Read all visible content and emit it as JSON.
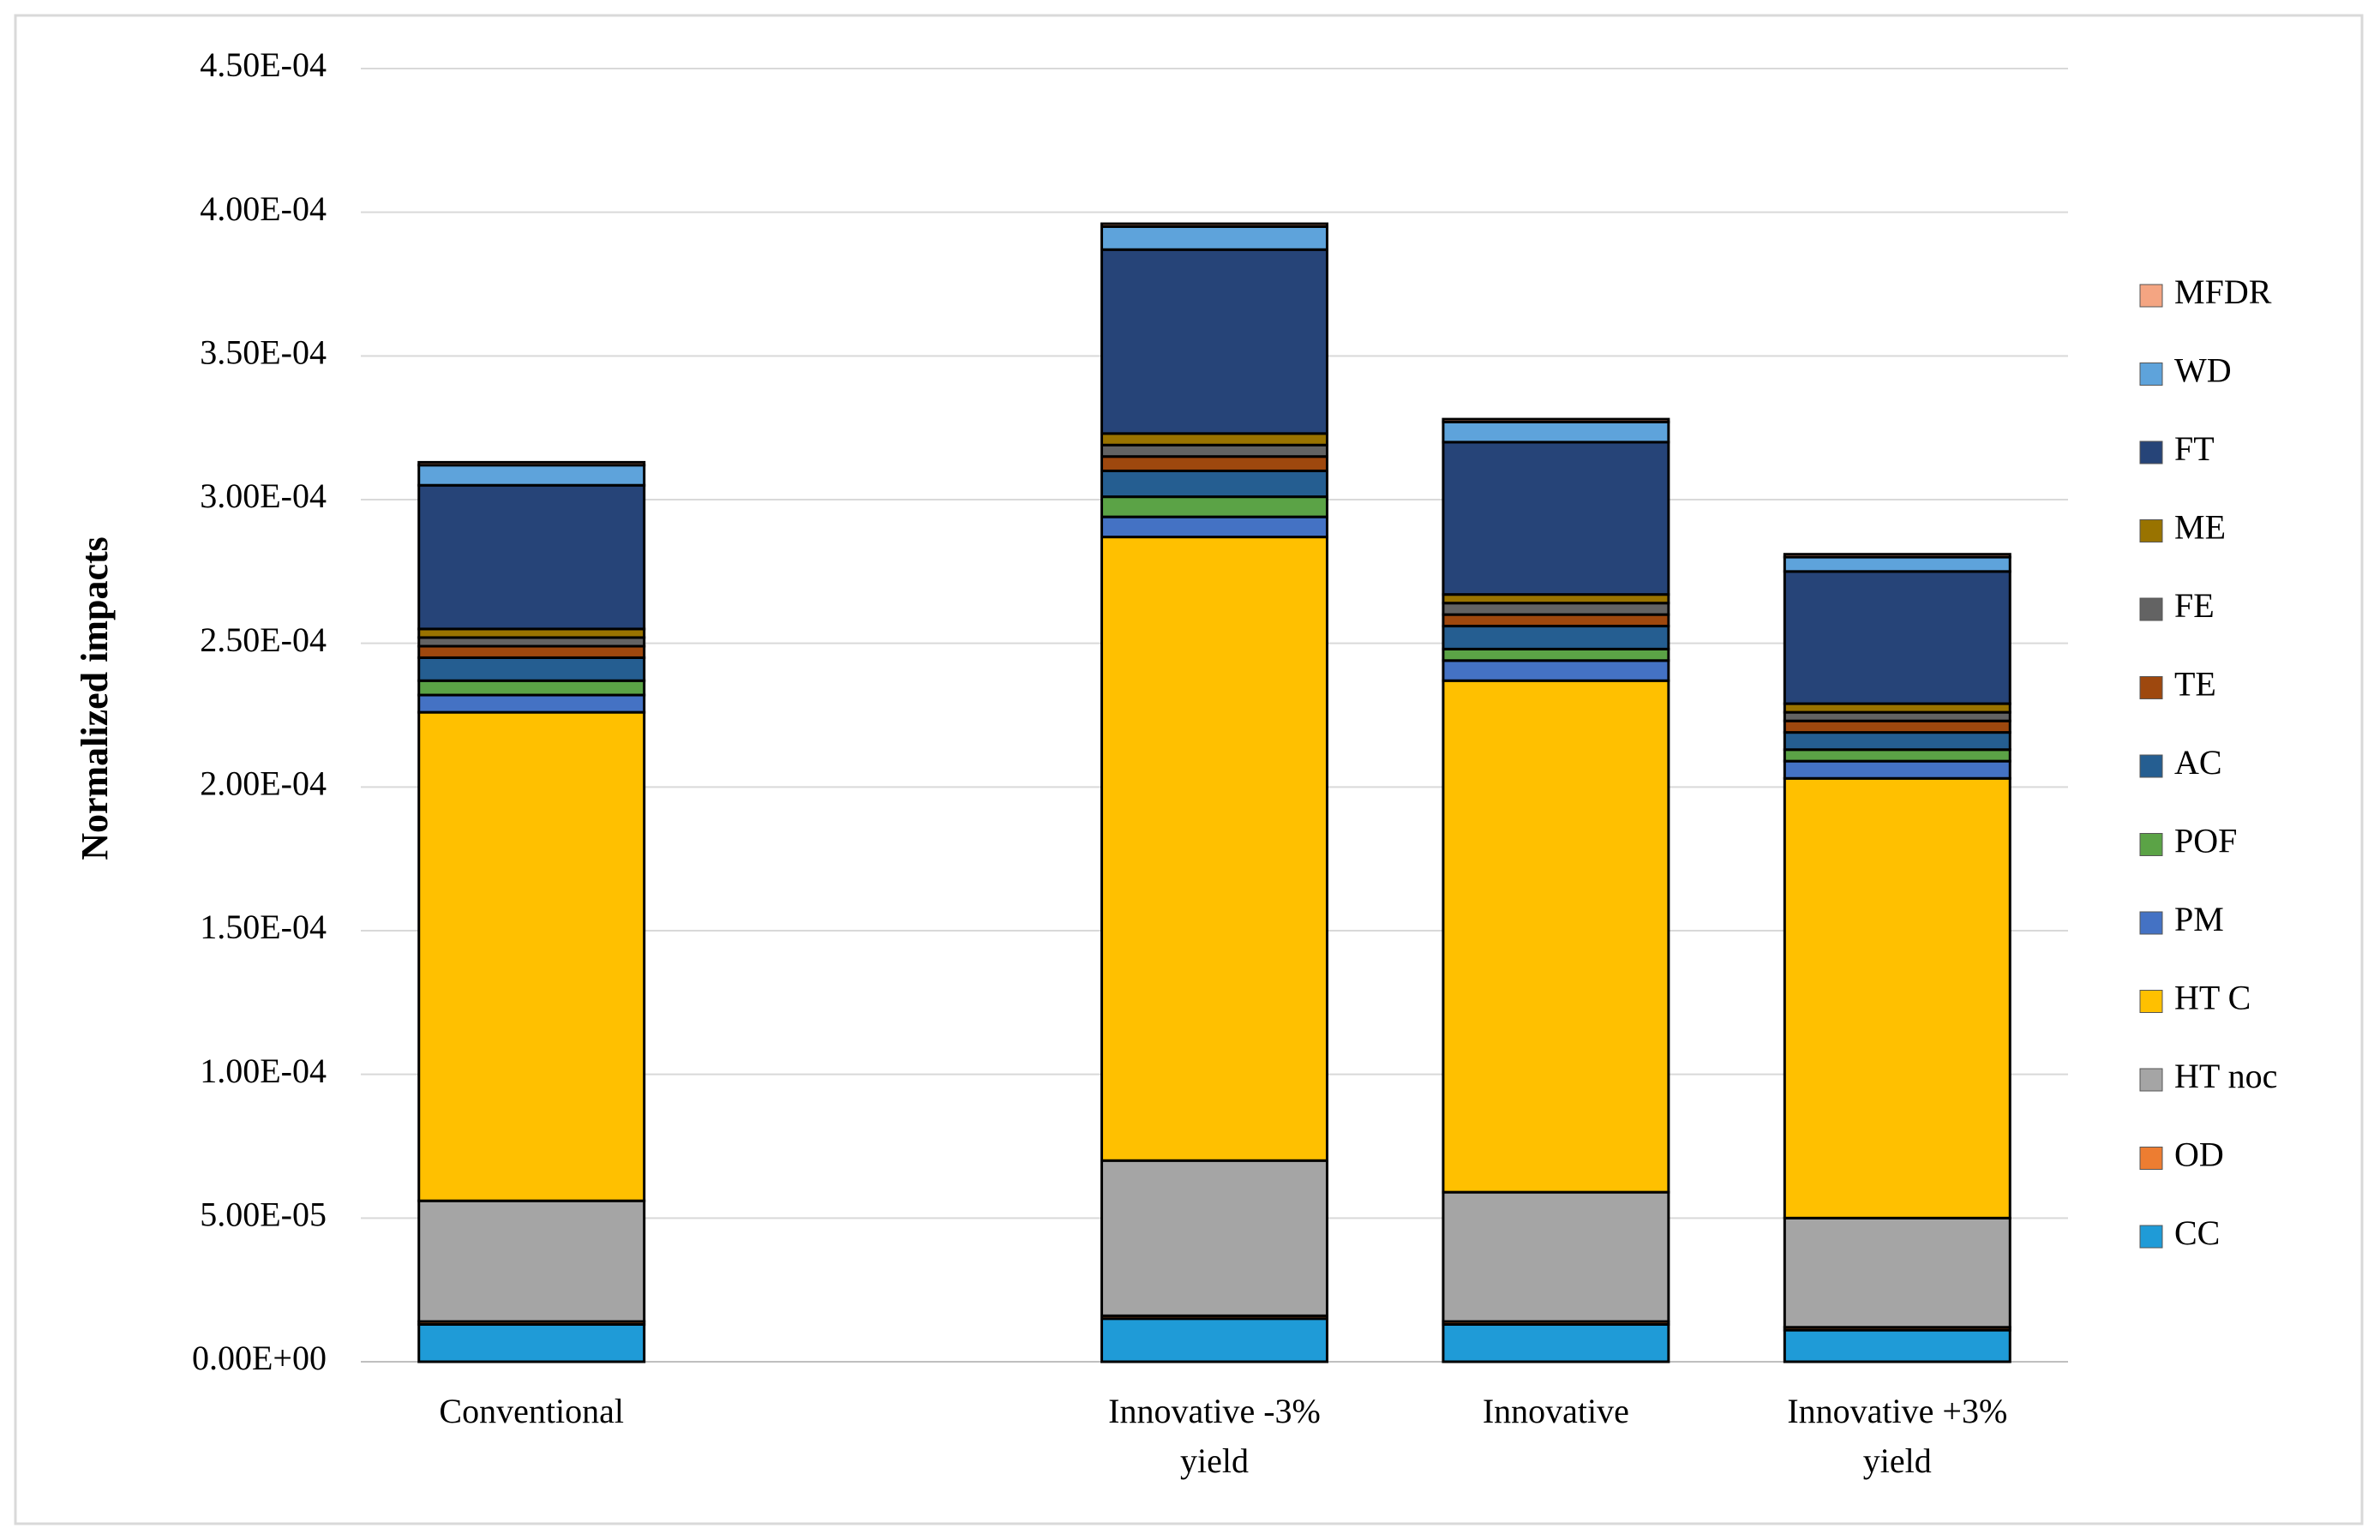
{
  "chart_data": {
    "type": "stacked_bar",
    "y_label": "Normalized impacts",
    "categories": [
      "Conventional",
      null,
      "Innovative -3% yield",
      "Innovative",
      "Innovative +3% yield"
    ],
    "series": [
      {
        "name": "CC",
        "color": "#1f9bd7",
        "values": [
          1.3e-05,
          null,
          1.5e-05,
          1.3e-05,
          1.1e-05
        ]
      },
      {
        "name": "OD",
        "color": "#ed7d31",
        "values": [
          1e-06,
          null,
          1e-06,
          1e-06,
          1e-06
        ]
      },
      {
        "name": "HT noc",
        "color": "#a5a5a5",
        "values": [
          4.2e-05,
          null,
          5.4e-05,
          4.5e-05,
          3.8e-05
        ]
      },
      {
        "name": "HT C",
        "color": "#ffc000",
        "values": [
          0.00017,
          null,
          0.000217,
          0.000178,
          0.000153
        ]
      },
      {
        "name": "PM",
        "color": "#4472c4",
        "values": [
          6e-06,
          null,
          7e-06,
          7e-06,
          6e-06
        ]
      },
      {
        "name": "POF",
        "color": "#5ba346",
        "values": [
          5e-06,
          null,
          7e-06,
          4e-06,
          4e-06
        ]
      },
      {
        "name": "AC",
        "color": "#255e91",
        "values": [
          8e-06,
          null,
          9e-06,
          8e-06,
          6e-06
        ]
      },
      {
        "name": "TE",
        "color": "#9e480e",
        "values": [
          4e-06,
          null,
          5e-06,
          4e-06,
          4e-06
        ]
      },
      {
        "name": "FE",
        "color": "#636363",
        "values": [
          3e-06,
          null,
          4e-06,
          4e-06,
          3e-06
        ]
      },
      {
        "name": "ME",
        "color": "#997300",
        "values": [
          3e-06,
          null,
          4e-06,
          3e-06,
          3e-06
        ]
      },
      {
        "name": "FT",
        "color": "#264478",
        "values": [
          5e-05,
          null,
          6.4e-05,
          5.3e-05,
          4.6e-05
        ]
      },
      {
        "name": "WD",
        "color": "#5ea3db",
        "values": [
          7e-06,
          null,
          8e-06,
          7e-06,
          5e-06
        ]
      },
      {
        "name": "MFDR",
        "color": "#f4a582",
        "values": [
          1e-06,
          null,
          1e-06,
          1e-06,
          1e-06
        ]
      }
    ],
    "ylim": [
      0,
      0.00045
    ],
    "yticks": [
      {
        "value": 0,
        "label": "0.00E+00"
      },
      {
        "value": 5e-05,
        "label": "5.00E-05"
      },
      {
        "value": 0.0001,
        "label": "1.00E-04"
      },
      {
        "value": 0.00015,
        "label": "1.50E-04"
      },
      {
        "value": 0.0002,
        "label": "2.00E-04"
      },
      {
        "value": 0.00025,
        "label": "2.50E-04"
      },
      {
        "value": 0.0003,
        "label": "3.00E-04"
      },
      {
        "value": 0.00035,
        "label": "3.50E-04"
      },
      {
        "value": 0.0004,
        "label": "4.00E-04"
      },
      {
        "value": 0.00045,
        "label": "4.50E-04"
      }
    ],
    "grid": true,
    "legend": "right"
  }
}
